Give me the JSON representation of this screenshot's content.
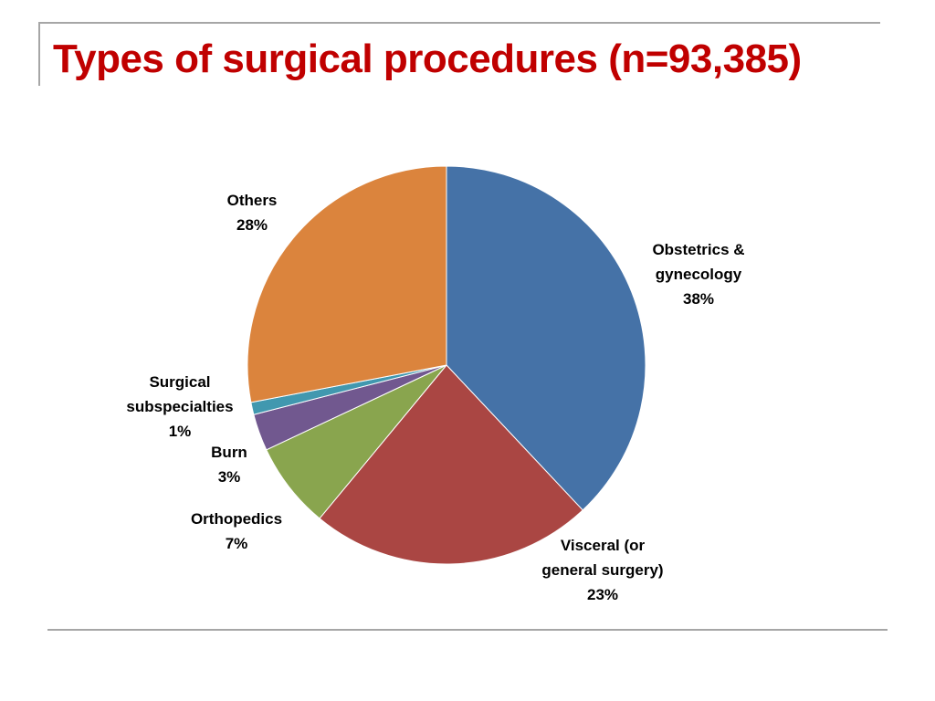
{
  "title": "Types of surgical procedures (n=93,385)",
  "chart_data": {
    "type": "pie",
    "title": "",
    "start": "12 o'clock",
    "direction": "clockwise",
    "legend": "none",
    "slices": [
      {
        "label_lines": [
          "Obstetrics &",
          "gynecology"
        ],
        "value": 38,
        "value_label": "38%",
        "color": "#4572a7"
      },
      {
        "label_lines": [
          "Visceral (or",
          "general surgery)"
        ],
        "value": 23,
        "value_label": "23%",
        "color": "#aa4643"
      },
      {
        "label_lines": [
          "Orthopedics"
        ],
        "value": 7,
        "value_label": "7%",
        "color": "#89a54e"
      },
      {
        "label_lines": [
          "Burn"
        ],
        "value": 3,
        "value_label": "3%",
        "color": "#71588f"
      },
      {
        "label_lines": [
          "Surgical",
          "subspecialties"
        ],
        "value": 1,
        "value_label": "1%",
        "color": "#4198af"
      },
      {
        "label_lines": [
          "Others"
        ],
        "value": 28,
        "value_label": "28%",
        "color": "#db843d"
      }
    ]
  }
}
